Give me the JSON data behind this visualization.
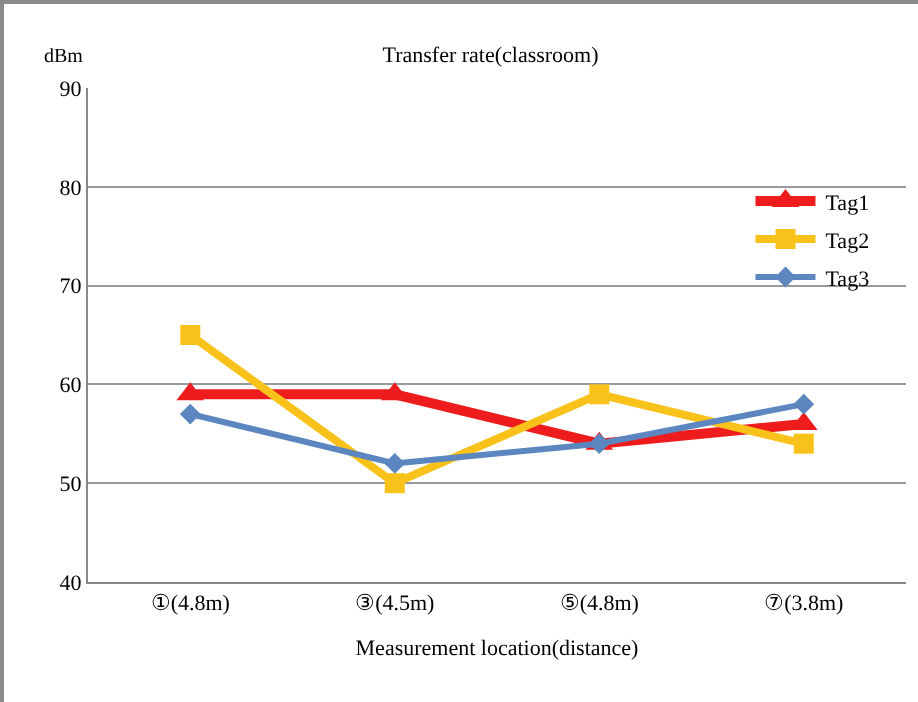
{
  "chart_data": {
    "type": "line",
    "title": "Transfer rate(classroom)",
    "xlabel": "Measurement location(distance)",
    "ylabel": "dBm",
    "categories": [
      "①(4.8m)",
      "③(4.5m)",
      "⑤(4.8m)",
      "⑦(3.8m)"
    ],
    "series": [
      {
        "name": "Tag1",
        "color": "#ee1c1c",
        "marker": "triangle",
        "values": [
          59,
          59,
          54,
          56
        ]
      },
      {
        "name": "Tag2",
        "color": "#f9c21a",
        "marker": "square",
        "values": [
          65,
          50,
          59,
          54
        ]
      },
      {
        "name": "Tag3",
        "color": "#5b86c0",
        "marker": "diamond",
        "values": [
          57,
          52,
          54,
          58
        ]
      }
    ],
    "ylim": [
      40,
      90
    ],
    "yticks": [
      40,
      50,
      60,
      70,
      80,
      90
    ],
    "grid": "y",
    "legend": "right",
    "line_style": "solid"
  }
}
